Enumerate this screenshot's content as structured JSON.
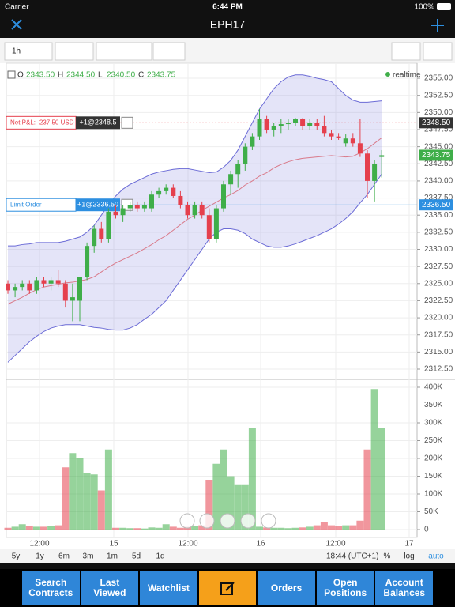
{
  "status": {
    "carrier": "Carrier",
    "time": "6:44 PM",
    "battery": "100%"
  },
  "nav": {
    "title": "EPH17"
  },
  "toolbar": {
    "interval": "1h"
  },
  "chart_data": {
    "type": "candlestick",
    "ohlc_legend": [
      {
        "key": "O",
        "value": "2343.50"
      },
      {
        "key": "H",
        "value": "2344.50"
      },
      {
        "key": "L",
        "value": "2340.50"
      },
      {
        "key": "C",
        "value": "2343.75"
      }
    ],
    "realtime": "realtime",
    "candles": [
      [
        2325,
        2325.5,
        2323.5,
        2324
      ],
      [
        2324,
        2325,
        2323,
        2324.5
      ],
      [
        2324.5,
        2325.5,
        2324,
        2325
      ],
      [
        2325,
        2325.5,
        2323.5,
        2324
      ],
      [
        2324,
        2326,
        2323.5,
        2325.5
      ],
      [
        2325.5,
        2326,
        2324.5,
        2325
      ],
      [
        2325,
        2326,
        2324,
        2325.5
      ],
      [
        2325.5,
        2327,
        2324.5,
        2325
      ],
      [
        2325,
        2325.5,
        2321.5,
        2322.5
      ],
      [
        2322.5,
        2325,
        2319.5,
        2323
      ],
      [
        2322.5,
        2326,
        2319.5,
        2326
      ],
      [
        2326,
        2331,
        2325.5,
        2330.5
      ],
      [
        2330.5,
        2333.5,
        2329.5,
        2333
      ],
      [
        2333,
        2334,
        2331,
        2331.5
      ],
      [
        2331.5,
        2336,
        2331,
        2335.5
      ],
      [
        2335.5,
        2336.5,
        2334.5,
        2335
      ],
      [
        2335,
        2336.5,
        2334,
        2336
      ],
      [
        2336,
        2337,
        2335.5,
        2336.5
      ],
      [
        2336.5,
        2337,
        2335.5,
        2336
      ],
      [
        2336,
        2337,
        2335.5,
        2336.5
      ],
      [
        2336,
        2338.5,
        2335.5,
        2338
      ],
      [
        2338,
        2339,
        2337.5,
        2338.5
      ],
      [
        2338.5,
        2339.5,
        2338,
        2339
      ],
      [
        2339,
        2339.5,
        2337.5,
        2337.8
      ],
      [
        2337.8,
        2338.5,
        2336,
        2336.5
      ],
      [
        2336.5,
        2337,
        2334.5,
        2335
      ],
      [
        2335,
        2337,
        2334.5,
        2336.5
      ],
      [
        2336.5,
        2337,
        2334.5,
        2335
      ],
      [
        2335,
        2336,
        2331,
        2331.5
      ],
      [
        2331.5,
        2336.5,
        2331,
        2336
      ],
      [
        2336,
        2340,
        2335.5,
        2339.5
      ],
      [
        2339.5,
        2341.5,
        2338,
        2341
      ],
      [
        2341,
        2343,
        2339,
        2342.5
      ],
      [
        2342.5,
        2345.5,
        2341.5,
        2345
      ],
      [
        2345,
        2347,
        2344.5,
        2346.5
      ],
      [
        2346.5,
        2350.5,
        2346,
        2349
      ],
      [
        2349,
        2349.5,
        2347,
        2347.5
      ],
      [
        2347.5,
        2348.5,
        2346.5,
        2348
      ],
      [
        2348,
        2349,
        2347,
        2348.3
      ],
      [
        2348.3,
        2349,
        2347.5,
        2348.5
      ],
      [
        2348.5,
        2349.2,
        2348,
        2349
      ],
      [
        2349,
        2349.2,
        2347.5,
        2348
      ],
      [
        2348,
        2349,
        2347.5,
        2348.5
      ],
      [
        2348.5,
        2349,
        2347.5,
        2348
      ],
      [
        2348,
        2349.5,
        2346.5,
        2347
      ],
      [
        2347,
        2347.5,
        2346,
        2346.5
      ],
      [
        2346.5,
        2347,
        2346,
        2346.3
      ],
      [
        2345.5,
        2346.8,
        2345,
        2346.2
      ],
      [
        2346.2,
        2347,
        2345,
        2345.5
      ],
      [
        2345.5,
        2349,
        2343.5,
        2344
      ],
      [
        2344,
        2344.5,
        2337.5,
        2340
      ],
      [
        2340,
        2343,
        2337,
        2342.5
      ],
      [
        2343.5,
        2344.5,
        2340.5,
        2343.75
      ]
    ],
    "volumes": [
      5000,
      8000,
      15000,
      10000,
      8000,
      8000,
      10000,
      12000,
      175000,
      215000,
      200000,
      160000,
      155000,
      110000,
      225000,
      5000,
      5000,
      4000,
      4000,
      3000,
      6000,
      5000,
      15000,
      8000,
      5000,
      8000,
      10000,
      12000,
      140000,
      185000,
      225000,
      150000,
      125000,
      125000,
      285000,
      8000,
      6000,
      5000,
      5000,
      4000,
      5000,
      6000,
      8000,
      12000,
      20000,
      12000,
      10000,
      12000,
      12000,
      25000,
      225000,
      395000,
      285000
    ],
    "upper_band": [
      2330.5,
      2330.5,
      2330.7,
      2330.8,
      2331,
      2331,
      2331,
      2331,
      2331.2,
      2331.5,
      2331.8,
      2332.5,
      2333.5,
      2335,
      2336.5,
      2337.8,
      2338.8,
      2339.5,
      2340,
      2340.5,
      2341,
      2341.3,
      2341.5,
      2341.7,
      2341.8,
      2341.8,
      2341.6,
      2341.4,
      2341.2,
      2341.3,
      2342,
      2343,
      2344.5,
      2346.5,
      2348.5,
      2350.5,
      2352,
      2353.5,
      2354.5,
      2355.2,
      2355.5,
      2355.5,
      2355.3,
      2355,
      2354.8,
      2354.5,
      2353.5,
      2352.5,
      2351.8,
      2351.5,
      2351.5,
      2351.6,
      2351.7
    ],
    "lower_band": [
      2313.5,
      2314.5,
      2315.5,
      2316.5,
      2317.3,
      2318,
      2318.5,
      2318.8,
      2319,
      2319,
      2319,
      2318.8,
      2318.6,
      2318.5,
      2318.3,
      2318.2,
      2318.2,
      2318.5,
      2319,
      2319.8,
      2320.5,
      2321.5,
      2322.5,
      2324,
      2325.5,
      2327,
      2328.5,
      2330,
      2331.5,
      2332.5,
      2333,
      2333,
      2332.8,
      2332.3,
      2331.5,
      2331,
      2330.5,
      2330.3,
      2330.3,
      2330.5,
      2330.8,
      2331.2,
      2331.6,
      2332,
      2332.5,
      2333,
      2333.7,
      2334.5,
      2335.5,
      2336.8,
      2338,
      2339.5,
      2341
    ],
    "moving_average": [
      2322,
      2322.5,
      2323,
      2323.6,
      2324.1,
      2324.5,
      2324.7,
      2324.9,
      2325.1,
      2325.2,
      2325.4,
      2325.6,
      2326,
      2326.7,
      2327.4,
      2328,
      2328.5,
      2329,
      2329.5,
      2330.1,
      2330.7,
      2331.4,
      2332,
      2332.8,
      2333.6,
      2334.4,
      2335,
      2335.7,
      2336.3,
      2336.9,
      2337.5,
      2338,
      2338.6,
      2339.4,
      2340,
      2340.7,
      2341.2,
      2341.9,
      2342.4,
      2342.8,
      2343.1,
      2343.3,
      2343.4,
      2343.5,
      2343.6,
      2343.7,
      2343.6,
      2343.5,
      2343.6,
      2344.1,
      2344.7,
      2345.5,
      2346.3
    ],
    "up_color": "#3fae49",
    "down_color": "#e5404d",
    "band_color": "#6b6bd6",
    "ma_color": "#d97a8a",
    "ylim": [
      2311,
      2357.2
    ],
    "yticks": [
      {
        "value": 2312.5,
        "label": "2312.50"
      },
      {
        "value": 2315,
        "label": "2315.00"
      },
      {
        "value": 2317.5,
        "label": "2317.50"
      },
      {
        "value": 2320,
        "label": "2320.00"
      },
      {
        "value": 2322.5,
        "label": "2322.50"
      },
      {
        "value": 2325,
        "label": "2325.00"
      },
      {
        "value": 2327.5,
        "label": "2327.50"
      },
      {
        "value": 2330,
        "label": "2330.00"
      },
      {
        "value": 2332.5,
        "label": "2332.50"
      },
      {
        "value": 2335,
        "label": "2335.00"
      },
      {
        "value": 2337.5,
        "label": "2337.50"
      },
      {
        "value": 2340,
        "label": "2340.00"
      },
      {
        "value": 2342.5,
        "label": "2342.50"
      },
      {
        "value": 2345,
        "label": "2345.00"
      },
      {
        "value": 2347.5,
        "label": "2347.50"
      },
      {
        "value": 2350,
        "label": "2350.00"
      },
      {
        "value": 2352.5,
        "label": "2352.50"
      },
      {
        "value": 2355,
        "label": "2355.00"
      }
    ],
    "y2lim": [
      -22200,
      422200
    ],
    "y2ticks": [
      0,
      {
        "value": 50000,
        "label": "50K"
      },
      {
        "value": 100000,
        "label": "100K"
      },
      {
        "value": 150000,
        "label": "150K"
      },
      {
        "value": 200000,
        "label": "200K"
      },
      {
        "value": 250000,
        "label": "250K"
      },
      {
        "value": 300000,
        "label": "300K"
      },
      {
        "value": 350000,
        "label": "350K"
      },
      {
        "value": 400000,
        "label": "400K"
      }
    ],
    "time_labels": [
      "12:00",
      "15",
      "12:00",
      "16",
      "12:00",
      "17"
    ],
    "orders": [
      {
        "label": "Net P&L: -237.50 USD",
        "qty": "+1@2348.5",
        "price": 2348.5,
        "color": "#e5404d"
      },
      {
        "label": "Limit Order",
        "qty": "+1@2336.50",
        "price": 2336.5,
        "color": "#2d8fe0"
      }
    ],
    "price_tags": [
      {
        "value": 2348.5,
        "label": "2348.50",
        "color": "#333333"
      },
      {
        "value": 2343.75,
        "label": "2343.75",
        "color": "#3fae49"
      },
      {
        "value": 2336.5,
        "label": "2336.50",
        "color": "#2d8fe0"
      }
    ],
    "grid": true
  },
  "range_bar": {
    "ranges": [
      "5y",
      "1y",
      "6m",
      "3m",
      "1m",
      "5d",
      "1d"
    ],
    "clock": "18:44 (UTC+1)",
    "options": [
      "%",
      "log",
      "auto"
    ]
  },
  "tabs": [
    "Search Contracts",
    "Last Viewed",
    "Watchlist",
    "Orders",
    "Open Positions",
    "Account Balances"
  ]
}
